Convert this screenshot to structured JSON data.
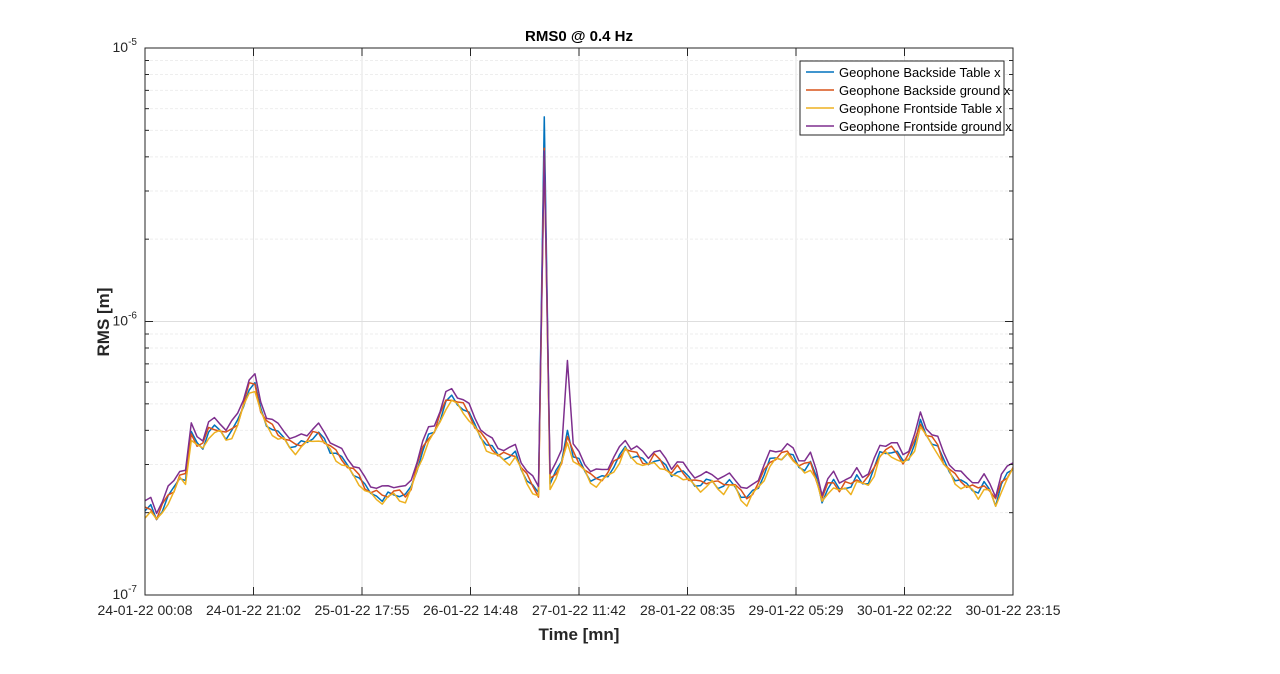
{
  "chart_data": {
    "type": "line",
    "title": "RMS0 @ 0.4 Hz",
    "xlabel": "Time [mn]",
    "ylabel": "RMS [m]",
    "yscale": "log",
    "ylim": [
      1e-07,
      1e-05
    ],
    "y_tick_labels": [
      {
        "base": "10",
        "exp": "-5",
        "value": 1e-05
      },
      {
        "base": "10",
        "exp": "-6",
        "value": 1e-06
      },
      {
        "base": "10",
        "exp": "-7",
        "value": 1e-07
      }
    ],
    "x_tick_labels": [
      "24-01-22 00:08",
      "24-01-22 21:02",
      "25-01-22 17:55",
      "26-01-22 14:48",
      "27-01-22 11:42",
      "28-01-22 08:35",
      "29-01-22 05:29",
      "30-01-22 02:22",
      "30-01-22 23:15"
    ],
    "grid": true,
    "legend_position": "top-right",
    "colors": {
      "blue": "#0072BD",
      "orange": "#D95319",
      "yellow": "#EDB120",
      "purple": "#7E2F8E"
    },
    "series": [
      {
        "name": "Geophone Backside Table x",
        "color": "#0072BD"
      },
      {
        "name": "Geophone Backside ground x",
        "color": "#D95319"
      },
      {
        "name": "Geophone Frontside Table x",
        "color": "#EDB120"
      },
      {
        "name": "Geophone Frontside ground x",
        "color": "#7E2F8E"
      }
    ],
    "base_values": [
      2.05e-07,
      2.1e-07,
      1.92e-07,
      2.1e-07,
      2.3e-07,
      2.45e-07,
      2.75e-07,
      2.7e-07,
      3.9e-07,
      3.6e-07,
      3.55e-07,
      4e-07,
      4.1e-07,
      4.05e-07,
      3.85e-07,
      4e-07,
      4.3e-07,
      5e-07,
      5.8e-07,
      5.9e-07,
      4.8e-07,
      4.3e-07,
      4.1e-07,
      3.9e-07,
      3.8e-07,
      3.6e-07,
      3.5e-07,
      3.6e-07,
      3.7e-07,
      3.85e-07,
      3.9e-07,
      3.7e-07,
      3.5e-07,
      3.3e-07,
      3.15e-07,
      3e-07,
      2.85e-07,
      2.7e-07,
      2.5e-07,
      2.4e-07,
      2.35e-07,
      2.3e-07,
      2.35e-07,
      2.4e-07,
      2.35e-07,
      2.3e-07,
      2.5e-07,
      2.95e-07,
      3.4e-07,
      3.8e-07,
      4e-07,
      4.5e-07,
      5.1e-07,
      5.3e-07,
      5.1e-07,
      4.9e-07,
      4.6e-07,
      4.2e-07,
      3.9e-07,
      3.6e-07,
      3.45e-07,
      3.3e-07,
      3.25e-07,
      3.2e-07,
      3.3e-07,
      2.95e-07,
      2.7e-07,
      2.5e-07,
      2.35e-07,
      5.5e-06,
      2.6e-07,
      2.8e-07,
      3.1e-07,
      3.8e-07,
      3.3e-07,
      3.1e-07,
      2.9e-07,
      2.7e-07,
      2.65e-07,
      2.7e-07,
      2.8e-07,
      3e-07,
      3.2e-07,
      3.5e-07,
      3.3e-07,
      3.25e-07,
      3.1e-07,
      3.05e-07,
      3.2e-07,
      3.1e-07,
      2.95e-07,
      2.8e-07,
      2.9e-07,
      2.8e-07,
      2.7e-07,
      2.6e-07,
      2.55e-07,
      2.6e-07,
      2.65e-07,
      2.55e-07,
      2.5e-07,
      2.6e-07,
      2.55e-07,
      2.35e-07,
      2.25e-07,
      2.4e-07,
      2.55e-07,
      2.8e-07,
      3.1e-07,
      3.2e-07,
      3.25e-07,
      3.3e-07,
      3.2e-07,
      3e-07,
      2.95e-07,
      3.05e-07,
      2.7e-07,
      2.25e-07,
      2.5e-07,
      2.6e-07,
      2.45e-07,
      2.55e-07,
      2.5e-07,
      2.7e-07,
      2.6e-07,
      2.65e-07,
      2.9e-07,
      3.3e-07,
      3.4e-07,
      3.4e-07,
      3.3e-07,
      3.1e-07,
      3.25e-07,
      3.6e-07,
      4.3e-07,
      3.9e-07,
      3.7e-07,
      3.5e-07,
      3.1e-07,
      2.9e-07,
      2.7e-07,
      2.6e-07,
      2.55e-07,
      2.5e-07,
      2.4e-07,
      2.55e-07,
      2.45e-07,
      2.2e-07,
      2.55e-07,
      2.75e-07,
      2.95e-07
    ],
    "series_adjustments": [
      {
        "factor": 0.99,
        "overrides": {
          "32": 3.3e-07,
          "33": 3.3e-07,
          "40": 2.3e-07,
          "41": 2.2e-07,
          "69": 5.6e-06,
          "73": 4e-07,
          "74": 3.2e-07
        }
      },
      {
        "factor": 1.0,
        "overrides": {
          "69": 4.3e-06,
          "73": 3.8e-07
        }
      },
      {
        "factor": 0.96,
        "overrides": {
          "69": 4.1e-06,
          "73": 3.6e-07,
          "111": 3.3e-07
        }
      },
      {
        "factor": 1.06,
        "overrides": {
          "69": 4.2e-06,
          "73": 7.2e-07,
          "72": 3.4e-07
        }
      }
    ]
  }
}
